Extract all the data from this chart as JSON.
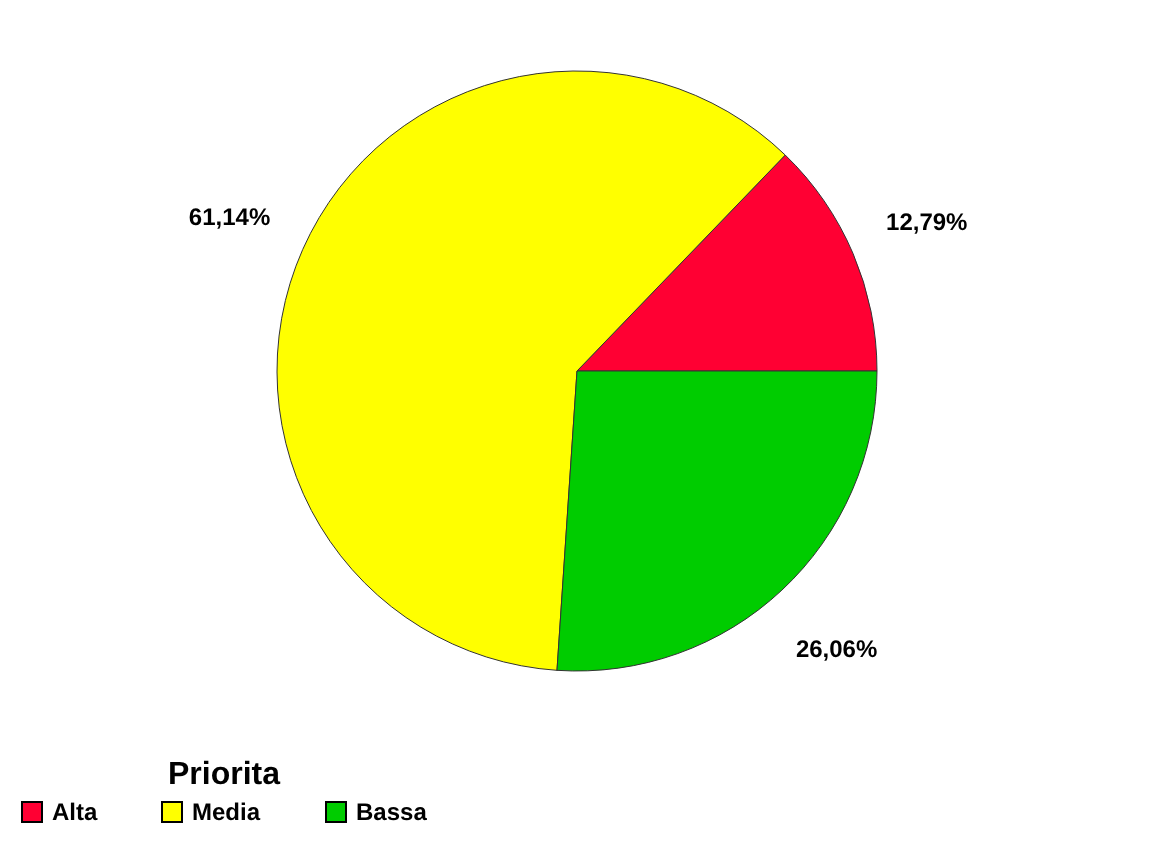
{
  "chart_data": {
    "type": "pie",
    "categories": [
      "Alta",
      "Media",
      "Bassa"
    ],
    "values": [
      12.79,
      61.14,
      26.06
    ],
    "colors": [
      "#ff0033",
      "#ffff00",
      "#00cc00"
    ],
    "value_labels": [
      "12,79%",
      "61,14%",
      "26,06%"
    ],
    "legend_title": "Priorita",
    "legend": "bottom"
  }
}
